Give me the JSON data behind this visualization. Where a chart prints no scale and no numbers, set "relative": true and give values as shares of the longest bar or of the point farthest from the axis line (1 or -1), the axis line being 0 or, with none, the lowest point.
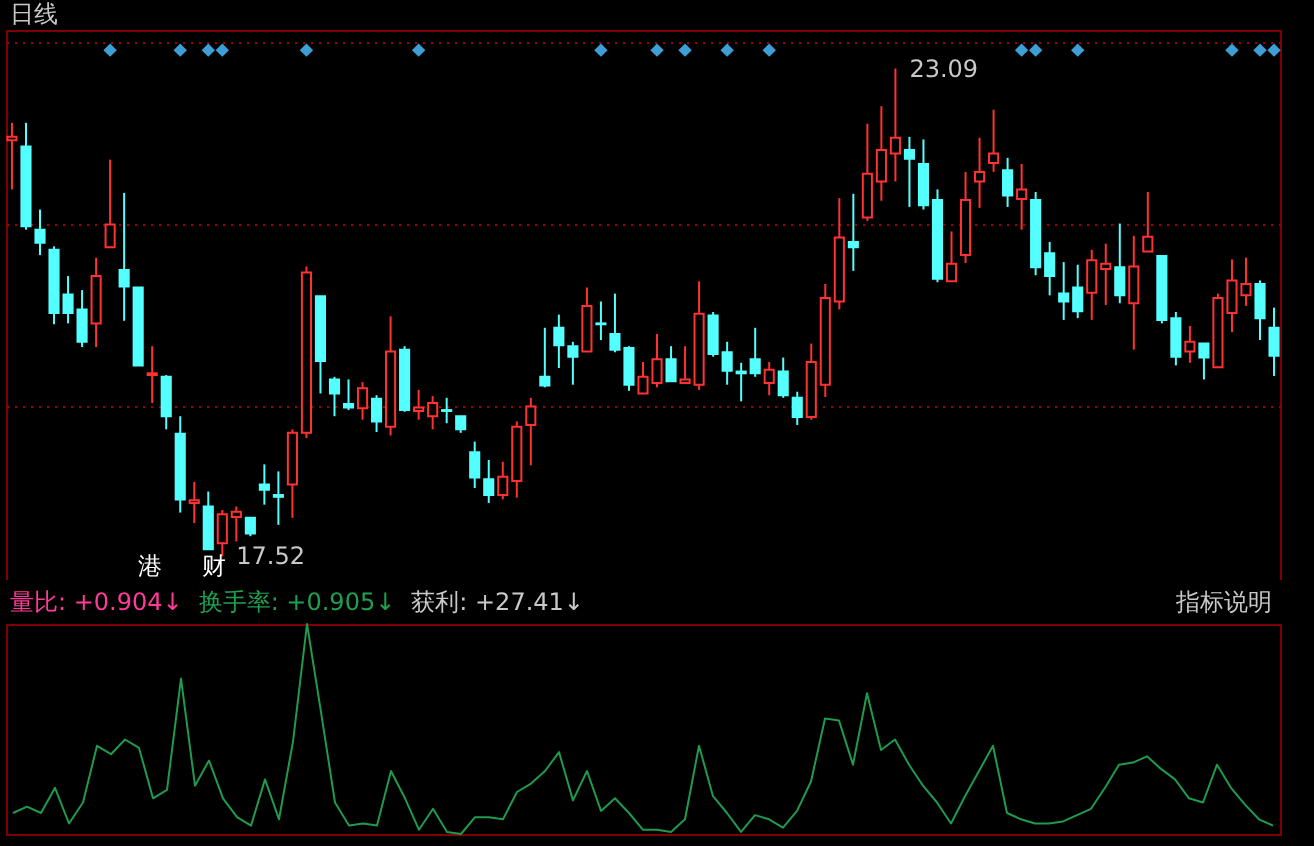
{
  "chart_data": [
    {
      "type": "candlestick",
      "title": "日线",
      "categories": [
        null,
        null,
        null,
        null,
        null,
        null,
        null,
        null,
        null,
        null,
        null,
        null,
        null,
        null,
        null,
        null,
        null,
        null,
        null,
        null,
        null,
        null,
        null,
        null,
        null,
        null,
        null,
        null,
        null,
        null,
        null,
        null,
        null,
        null,
        null,
        null,
        null,
        null,
        null,
        null,
        null,
        null,
        null,
        null,
        null,
        null,
        null,
        null,
        null,
        null,
        null,
        null,
        null,
        null,
        null,
        null,
        null,
        null,
        null,
        null,
        null,
        null,
        null,
        null,
        null,
        null,
        null,
        null,
        null,
        null,
        null,
        null,
        null,
        null,
        null,
        null,
        null,
        null,
        null,
        null,
        null,
        null,
        null,
        null,
        null,
        null,
        null,
        null,
        null,
        null,
        null
      ],
      "ohlc": [
        [
          22.27,
          22.47,
          21.71,
          22.31
        ],
        [
          22.2,
          22.47,
          21.25,
          21.29
        ],
        [
          21.25,
          21.48,
          20.96,
          21.1
        ],
        [
          21.02,
          21.06,
          20.17,
          20.3
        ],
        [
          20.51,
          20.72,
          20.18,
          20.3
        ],
        [
          20.34,
          20.56,
          19.91,
          19.97
        ],
        [
          20.18,
          20.93,
          19.91,
          20.72
        ],
        [
          21.05,
          22.05,
          21.05,
          21.31
        ],
        [
          20.79,
          21.67,
          20.21,
          20.6
        ],
        [
          20.59,
          20.59,
          19.7,
          19.7
        ],
        [
          19.59,
          19.92,
          19.27,
          19.61
        ],
        [
          19.57,
          19.59,
          18.97,
          19.12
        ],
        [
          18.92,
          19.12,
          18.02,
          18.17
        ],
        [
          18.13,
          18.37,
          17.9,
          18.16
        ],
        [
          18.09,
          18.26,
          17.6,
          17.6
        ],
        [
          17.67,
          18.05,
          17.52,
          18.0
        ],
        [
          17.97,
          18.09,
          17.69,
          18.03
        ],
        [
          17.96,
          17.96,
          17.75,
          17.78
        ],
        [
          18.34,
          18.57,
          18.11,
          18.28
        ],
        [
          18.22,
          18.49,
          17.88,
          18.2
        ],
        [
          18.34,
          18.97,
          17.96,
          18.93
        ],
        [
          18.93,
          20.83,
          18.87,
          20.76
        ],
        [
          20.49,
          20.49,
          19.38,
          19.75
        ],
        [
          19.54,
          19.57,
          19.12,
          19.38
        ],
        [
          19.26,
          19.54,
          19.19,
          19.22
        ],
        [
          19.21,
          19.51,
          19.08,
          19.44
        ],
        [
          19.32,
          19.36,
          18.94,
          19.06
        ],
        [
          19.0,
          20.26,
          18.9,
          19.86
        ],
        [
          19.88,
          19.92,
          19.17,
          19.19
        ],
        [
          19.18,
          19.42,
          19.08,
          19.22
        ],
        [
          19.12,
          19.35,
          18.97,
          19.27
        ],
        [
          19.19,
          19.33,
          19.04,
          19.18
        ],
        [
          19.12,
          19.12,
          18.93,
          18.97
        ],
        [
          18.71,
          18.83,
          18.3,
          18.42
        ],
        [
          18.4,
          18.62,
          18.13,
          18.22
        ],
        [
          18.22,
          18.6,
          18.17,
          18.43
        ],
        [
          18.38,
          19.06,
          18.19,
          19.0
        ],
        [
          19.02,
          19.33,
          18.56,
          19.23
        ],
        [
          19.57,
          20.13,
          19.45,
          19.47
        ],
        [
          20.13,
          20.28,
          19.67,
          19.93
        ],
        [
          19.92,
          19.97,
          19.48,
          19.8
        ],
        [
          19.86,
          20.59,
          19.86,
          20.38
        ],
        [
          20.18,
          20.43,
          19.99,
          20.17
        ],
        [
          20.06,
          20.52,
          19.85,
          19.88
        ],
        [
          19.9,
          19.92,
          19.41,
          19.48
        ],
        [
          19.38,
          19.74,
          19.38,
          19.57
        ],
        [
          19.5,
          20.06,
          19.45,
          19.77
        ],
        [
          19.77,
          19.92,
          19.52,
          19.52
        ],
        [
          19.5,
          19.92,
          19.5,
          19.54
        ],
        [
          19.48,
          20.66,
          19.42,
          20.29
        ],
        [
          20.27,
          20.31,
          19.8,
          19.83
        ],
        [
          19.85,
          19.97,
          19.48,
          19.64
        ],
        [
          19.63,
          19.73,
          19.29,
          19.61
        ],
        [
          19.77,
          20.13,
          19.57,
          19.61
        ],
        [
          19.5,
          19.74,
          19.36,
          19.65
        ],
        [
          19.63,
          19.79,
          19.33,
          19.36
        ],
        [
          19.33,
          19.4,
          19.02,
          19.11
        ],
        [
          19.11,
          19.95,
          19.08,
          19.74
        ],
        [
          19.48,
          20.63,
          19.34,
          20.47
        ],
        [
          20.43,
          21.61,
          20.34,
          21.16
        ],
        [
          21.11,
          21.66,
          20.78,
          21.05
        ],
        [
          21.39,
          22.46,
          21.35,
          21.89
        ],
        [
          21.8,
          22.66,
          21.58,
          22.16
        ],
        [
          22.12,
          23.09,
          21.8,
          22.3
        ],
        [
          22.16,
          22.31,
          21.51,
          22.06
        ],
        [
          22.0,
          22.28,
          21.48,
          21.53
        ],
        [
          21.59,
          21.71,
          20.65,
          20.69
        ],
        [
          20.66,
          21.23,
          20.66,
          20.86
        ],
        [
          20.96,
          21.91,
          20.87,
          21.59
        ],
        [
          21.8,
          22.3,
          21.5,
          21.91
        ],
        [
          22.01,
          22.62,
          21.91,
          22.12
        ],
        [
          21.93,
          22.07,
          21.51,
          21.64
        ],
        [
          21.6,
          22.0,
          21.25,
          21.71
        ],
        [
          21.59,
          21.68,
          20.73,
          20.82
        ],
        [
          20.98,
          21.11,
          20.5,
          20.72
        ],
        [
          20.52,
          20.88,
          20.22,
          20.43
        ],
        [
          20.59,
          20.85,
          20.24,
          20.32
        ],
        [
          20.53,
          21.02,
          20.22,
          20.9
        ],
        [
          20.8,
          21.09,
          20.39,
          20.86
        ],
        [
          20.82,
          21.32,
          20.41,
          20.5
        ],
        [
          20.41,
          21.18,
          19.88,
          20.83
        ],
        [
          21.0,
          21.68,
          21.0,
          21.17
        ],
        [
          20.95,
          20.95,
          20.18,
          20.22
        ],
        [
          20.24,
          20.31,
          19.7,
          19.8
        ],
        [
          19.86,
          20.15,
          19.73,
          19.97
        ],
        [
          19.95,
          19.95,
          19.54,
          19.79
        ],
        [
          19.68,
          20.52,
          19.68,
          20.47
        ],
        [
          20.3,
          20.91,
          20.08,
          20.67
        ],
        [
          20.5,
          20.93,
          20.38,
          20.63
        ],
        [
          20.63,
          20.67,
          19.99,
          20.24
        ],
        [
          20.13,
          20.36,
          19.58,
          19.81
        ]
      ],
      "series": [
        {
          "type": "scatter",
          "color": "#3d9fd6",
          "values": [
            null,
            null,
            null,
            null,
            null,
            null,
            null,
            23.3,
            null,
            null,
            null,
            null,
            23.3,
            null,
            23.3,
            23.3,
            null,
            null,
            null,
            null,
            null,
            23.3,
            null,
            null,
            null,
            null,
            null,
            null,
            null,
            23.3,
            null,
            null,
            null,
            null,
            null,
            null,
            null,
            null,
            null,
            null,
            null,
            null,
            23.3,
            null,
            null,
            null,
            23.3,
            null,
            23.3,
            null,
            null,
            23.3,
            null,
            null,
            23.3,
            null,
            null,
            null,
            null,
            null,
            null,
            null,
            null,
            null,
            null,
            null,
            null,
            null,
            null,
            null,
            null,
            null,
            23.3,
            23.3,
            null,
            null,
            23.3,
            null,
            null,
            null,
            null,
            null,
            null,
            null,
            null,
            null,
            null,
            23.3,
            null,
            23.3,
            23.3
          ]
        }
      ],
      "marker": "diamond",
      "ylim": [
        17.25,
        23.53
      ],
      "yticks": [
        {
          "value": 19.23,
          "label": null
        },
        {
          "value": 21.31,
          "label": null
        },
        {
          "value": 23.39,
          "label": null
        }
      ],
      "grid": "y",
      "tick_labels": false,
      "annotations": [
        "23.09",
        "17.52",
        "港",
        "财"
      ]
    },
    {
      "type": "line",
      "relative": true,
      "color": "#1f9a4e",
      "categories": [
        null,
        null,
        null,
        null,
        null,
        null,
        null,
        null,
        null,
        null,
        null,
        null,
        null,
        null,
        null,
        null,
        null,
        null,
        null,
        null,
        null,
        null,
        null,
        null,
        null,
        null,
        null,
        null,
        null,
        null,
        null,
        null,
        null,
        null,
        null,
        null,
        null,
        null,
        null,
        null,
        null,
        null,
        null,
        null,
        null,
        null,
        null,
        null,
        null,
        null,
        null,
        null,
        null,
        null,
        null,
        null,
        null,
        null,
        null,
        null,
        null,
        null,
        null,
        null,
        null,
        null,
        null,
        null,
        null,
        null,
        null,
        null,
        null,
        null,
        null,
        null,
        null,
        null,
        null,
        null,
        null,
        null,
        null,
        null,
        null,
        null,
        null,
        null,
        null,
        null,
        null
      ],
      "values": [
        0.1,
        0.13,
        0.1,
        0.22,
        0.05,
        0.15,
        0.42,
        0.38,
        0.45,
        0.41,
        0.17,
        0.21,
        0.74,
        0.23,
        0.35,
        0.17,
        0.08,
        0.04,
        0.26,
        0.07,
        0.44,
        1,
        0.58,
        0.15,
        0.04,
        0.05,
        0.04,
        0.3,
        0.17,
        0.02,
        0.12,
        0.01,
        0,
        0.08,
        0.08,
        0.07,
        0.2,
        0.24,
        0.3,
        0.39,
        0.16,
        0.3,
        0.11,
        0.17,
        0.1,
        0.02,
        0.02,
        0.01,
        0.07,
        0.42,
        0.18,
        0.1,
        0.01,
        0.09,
        0.07,
        0.03,
        0.11,
        0.25,
        0.55,
        0.54,
        0.33,
        0.67,
        0.4,
        0.45,
        0.33,
        0.23,
        0.15,
        0.05,
        0.18,
        0.3,
        0.42,
        0.1,
        0.07,
        0.05,
        0.05,
        0.06,
        0.09,
        0.12,
        0.22,
        0.33,
        0.34,
        0.37,
        0.31,
        0.26,
        0.17,
        0.15,
        0.33,
        0.22,
        0.14,
        0.07,
        0.04
      ],
      "annotations": [
        "量比: +0.904↓",
        "换手率: +0.905↓",
        "获利: +27.41↓",
        "指标说明"
      ]
    }
  ]
}
